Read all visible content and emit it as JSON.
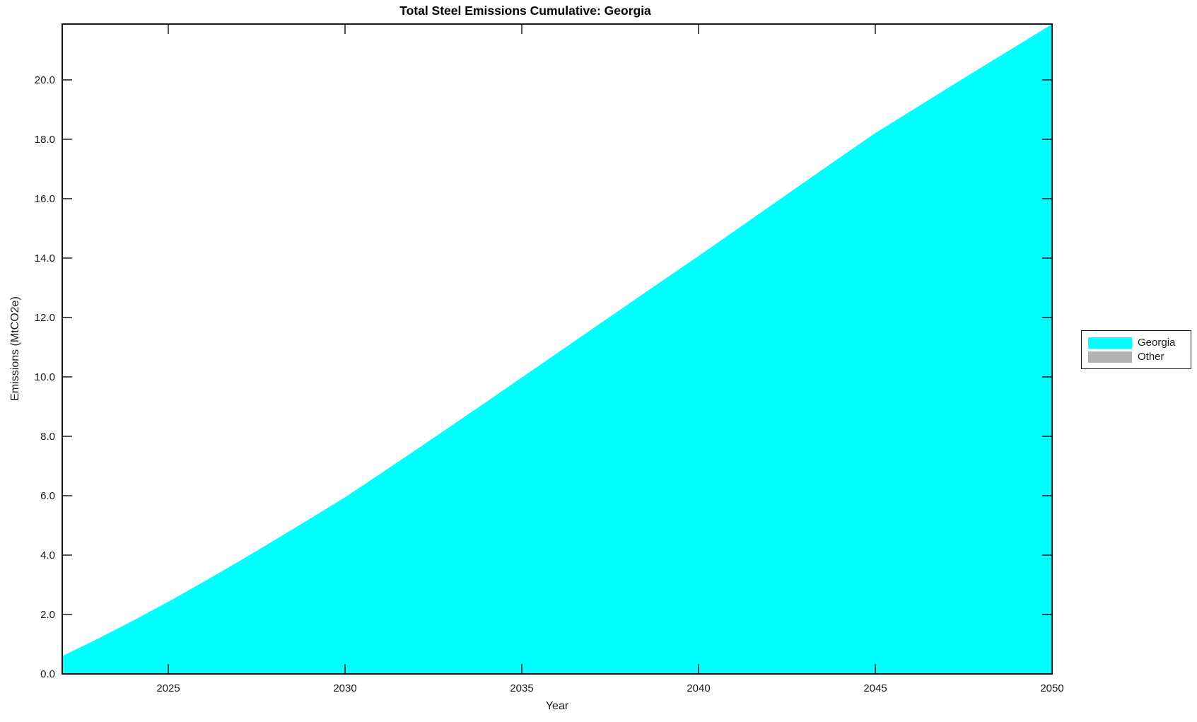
{
  "chart_data": {
    "type": "area",
    "title": "Total Steel Emissions Cumulative: Georgia",
    "xlabel": "Year",
    "ylabel": "Emissions (MtCO2e)",
    "x": [
      2022,
      2023,
      2024,
      2025,
      2026,
      2027,
      2028,
      2029,
      2030,
      2031,
      2032,
      2033,
      2034,
      2035,
      2036,
      2037,
      2038,
      2039,
      2040,
      2041,
      2042,
      2043,
      2044,
      2045,
      2046,
      2047,
      2048,
      2049,
      2050
    ],
    "series": [
      {
        "name": "Georgia",
        "color": "#00FFFF",
        "values": [
          0.6,
          1.18,
          1.79,
          2.43,
          3.1,
          3.79,
          4.5,
          5.22,
          5.95,
          6.74,
          7.54,
          8.35,
          9.16,
          9.98,
          10.8,
          11.62,
          12.44,
          13.26,
          14.07,
          14.9,
          15.73,
          16.56,
          17.39,
          18.21,
          18.95,
          19.69,
          20.42,
          21.15,
          21.88
        ]
      },
      {
        "name": "Other",
        "color": "#B3B3B3",
        "values": [
          0,
          0,
          0,
          0,
          0,
          0,
          0,
          0,
          0,
          0,
          0,
          0,
          0,
          0,
          0,
          0,
          0,
          0,
          0,
          0,
          0,
          0,
          0,
          0,
          0,
          0,
          0,
          0,
          0
        ]
      }
    ],
    "xlim": [
      2022,
      2050
    ],
    "ylim": [
      0,
      21.88
    ],
    "x_tick_values": [
      2025,
      2030,
      2035,
      2040,
      2045,
      2050
    ],
    "x_tick_labels": [
      "2025",
      "2030",
      "2035",
      "2040",
      "2045",
      "2050"
    ],
    "y_tick_values": [
      0,
      2,
      4,
      6,
      8,
      10,
      12,
      14,
      16,
      18,
      20
    ],
    "y_tick_labels": [
      "0.0",
      "2.0",
      "4.0",
      "6.0",
      "8.0",
      "10.0",
      "12.0",
      "14.0",
      "16.0",
      "18.0",
      "20.0"
    ],
    "grid": false,
    "legend_position": "right-outside",
    "axis_color": "#1a1a1a",
    "background_color": "#ffffff"
  }
}
